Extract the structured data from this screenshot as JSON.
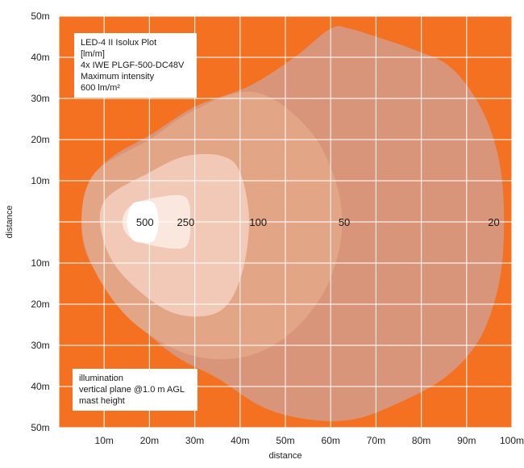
{
  "chart_data": {
    "type": "isolux_contour",
    "xlabel": "distance",
    "ylabel": "distance",
    "x_ticks": [
      "10m",
      "20m",
      "30m",
      "40m",
      "50m",
      "60m",
      "70m",
      "80m",
      "90m",
      "100m"
    ],
    "y_ticks_top": [
      "50m",
      "40m",
      "30m",
      "20m",
      "10m"
    ],
    "y_ticks_bottom": [
      "10m",
      "20m",
      "30m",
      "40m",
      "50m"
    ],
    "x_range": [
      0,
      100
    ],
    "y_range": [
      -50,
      50
    ],
    "grid": true,
    "title_box": {
      "lines": [
        "LED-4 II Isolux Plot",
        "[lm/m]",
        "4x IWE PLGF-500-DC48V",
        "Maximum intensity",
        "600 lm/m²"
      ]
    },
    "info_box": {
      "lines": [
        "illumination",
        "vertical plane @1.0 m AGL",
        "mast height"
      ]
    },
    "levels": [
      {
        "label": "20",
        "value": 20,
        "label_x": 96,
        "polygon": [
          [
            30,
            28
          ],
          [
            42,
            33
          ],
          [
            52,
            40
          ],
          [
            60,
            47
          ],
          [
            64,
            47
          ],
          [
            70,
            45
          ],
          [
            78,
            42
          ],
          [
            86,
            38
          ],
          [
            92,
            30
          ],
          [
            96,
            20
          ],
          [
            98,
            8
          ],
          [
            98,
            -8
          ],
          [
            96,
            -20
          ],
          [
            92,
            -30
          ],
          [
            85,
            -38
          ],
          [
            75,
            -44
          ],
          [
            65,
            -48
          ],
          [
            55,
            -48
          ],
          [
            45,
            -45
          ],
          [
            35,
            -38
          ],
          [
            25,
            -32
          ],
          [
            15,
            -22
          ],
          [
            7,
            -10
          ],
          [
            5,
            0
          ],
          [
            7,
            10
          ],
          [
            12,
            16
          ],
          [
            20,
            21
          ]
        ]
      },
      {
        "label": "50",
        "value": 50,
        "label_x": 63,
        "polygon": [
          [
            20,
            20
          ],
          [
            28,
            26
          ],
          [
            38,
            31
          ],
          [
            45,
            31
          ],
          [
            52,
            26
          ],
          [
            58,
            18
          ],
          [
            62,
            6
          ],
          [
            62,
            -6
          ],
          [
            58,
            -18
          ],
          [
            50,
            -28
          ],
          [
            40,
            -33
          ],
          [
            28,
            -32
          ],
          [
            16,
            -24
          ],
          [
            8,
            -12
          ],
          [
            5,
            0
          ],
          [
            8,
            12
          ]
        ]
      },
      {
        "label": "100",
        "value": 100,
        "label_x": 44,
        "polygon": [
          [
            20,
            12
          ],
          [
            28,
            16
          ],
          [
            36,
            16
          ],
          [
            40,
            12
          ],
          [
            42,
            0
          ],
          [
            40,
            -14
          ],
          [
            35,
            -22
          ],
          [
            25,
            -22
          ],
          [
            15,
            -14
          ],
          [
            10,
            -5
          ],
          [
            10,
            5
          ]
        ]
      },
      {
        "label": "250",
        "value": 250,
        "label_x": 28,
        "polygon": [
          [
            22,
            6
          ],
          [
            28,
            6
          ],
          [
            29,
            0
          ],
          [
            28,
            -6
          ],
          [
            22,
            -6
          ],
          [
            16,
            -4
          ],
          [
            14,
            0
          ],
          [
            16,
            4
          ]
        ]
      },
      {
        "label": "500",
        "value": 500,
        "label_x": 19,
        "polygon": [
          [
            18,
            5
          ],
          [
            21,
            4.5
          ],
          [
            22,
            0
          ],
          [
            21,
            -4.5
          ],
          [
            18,
            -5
          ],
          [
            16,
            -4
          ],
          [
            15,
            0
          ],
          [
            16,
            4
          ]
        ]
      }
    ],
    "colors": {
      "background": "#f37121",
      "grid": "#ffffff",
      "levels": [
        "#d99579",
        "#e2a585",
        "#f2c9b7",
        "#fae8df",
        "#ffffff"
      ]
    }
  }
}
